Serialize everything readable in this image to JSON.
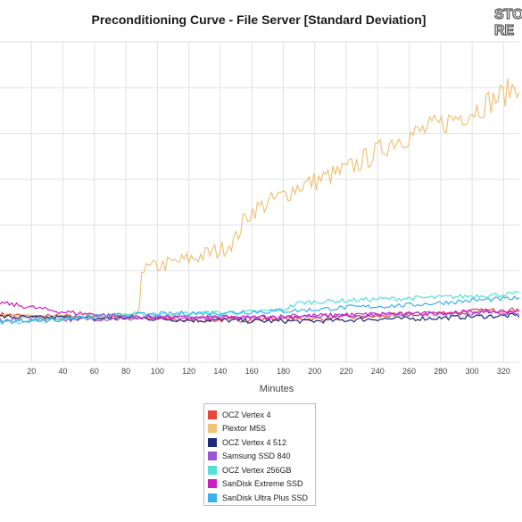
{
  "chart_data": {
    "type": "line",
    "title": "Preconditioning Curve - File Server [Standard Deviation]",
    "xlabel": "Minutes",
    "ylabel": "",
    "xlim": [
      0,
      330
    ],
    "x_ticks": [
      20,
      40,
      60,
      80,
      100,
      120,
      140,
      160,
      180,
      200,
      220,
      240,
      260,
      280,
      300,
      320
    ],
    "ylim": [
      0,
      7
    ],
    "grid": true,
    "legend_position": "bottom-center",
    "series": [
      {
        "name": "OCZ Vertex 4",
        "color": "#e8463a",
        "x": [
          0,
          20,
          40,
          60,
          80,
          100,
          120,
          140,
          160,
          180,
          200,
          220,
          240,
          260,
          280,
          300,
          330
        ],
        "y": [
          1.05,
          1.0,
          1.0,
          0.98,
          1.0,
          0.95,
          0.92,
          0.92,
          0.93,
          0.95,
          0.95,
          0.98,
          1.0,
          1.05,
          1.08,
          1.12,
          1.15
        ]
      },
      {
        "name": "Plextor M5S",
        "color": "#f0c27a",
        "x": [
          0,
          20,
          40,
          60,
          80,
          88,
          89,
          90,
          100,
          120,
          140,
          150,
          155,
          160,
          180,
          190,
          200,
          220,
          240,
          250,
          260,
          280,
          300,
          320,
          330
        ],
        "y": [
          1.02,
          1.0,
          1.0,
          1.02,
          1.0,
          1.02,
          1.4,
          2.0,
          2.1,
          2.25,
          2.45,
          2.7,
          3.1,
          3.3,
          3.65,
          3.85,
          3.95,
          4.2,
          4.6,
          4.85,
          4.95,
          5.2,
          5.5,
          5.85,
          6.1
        ]
      },
      {
        "name": "OCZ Vertex 4 512",
        "color": "#1e2a7a",
        "x": [
          0,
          20,
          40,
          60,
          80,
          100,
          120,
          140,
          160,
          180,
          200,
          220,
          240,
          260,
          280,
          300,
          330
        ],
        "y": [
          1.0,
          0.97,
          0.98,
          0.95,
          0.97,
          0.95,
          0.92,
          0.92,
          0.9,
          0.9,
          0.9,
          0.92,
          0.95,
          0.95,
          0.97,
          1.0,
          1.02
        ]
      },
      {
        "name": "Samsung SSD 840",
        "color": "#9b55d6",
        "x": [
          0,
          20,
          40,
          60,
          80,
          100,
          120,
          140,
          160,
          180,
          200,
          220,
          240,
          260,
          280,
          300,
          330
        ],
        "y": [
          0.92,
          0.92,
          0.93,
          0.95,
          0.95,
          0.97,
          0.97,
          0.98,
          1.0,
          1.0,
          1.02,
          1.03,
          1.05,
          1.05,
          1.07,
          1.08,
          1.1
        ]
      },
      {
        "name": "OCZ Vertex 256GB",
        "color": "#55e0d6",
        "x": [
          0,
          20,
          40,
          60,
          80,
          100,
          120,
          140,
          160,
          180,
          190,
          200,
          220,
          240,
          260,
          280,
          300,
          330
        ],
        "y": [
          0.85,
          0.9,
          0.95,
          1.0,
          1.05,
          1.05,
          1.07,
          1.08,
          1.1,
          1.15,
          1.3,
          1.32,
          1.35,
          1.38,
          1.4,
          1.42,
          1.45,
          1.5
        ]
      },
      {
        "name": "SanDisk Extreme SSD",
        "color": "#cc1fc1",
        "x": [
          0,
          20,
          40,
          60,
          80,
          100,
          120,
          140,
          160,
          180,
          200,
          220,
          240,
          260,
          280,
          300,
          330
        ],
        "y": [
          1.3,
          1.2,
          1.1,
          1.05,
          1.0,
          0.98,
          0.97,
          0.97,
          0.98,
          1.0,
          1.02,
          1.03,
          1.05,
          1.05,
          1.08,
          1.1,
          1.12
        ]
      },
      {
        "name": "SanDisk Ultra Plus SSD",
        "color": "#3ab0ec",
        "x": [
          0,
          20,
          40,
          60,
          80,
          100,
          120,
          140,
          160,
          180,
          200,
          220,
          240,
          260,
          280,
          300,
          330
        ],
        "y": [
          0.88,
          0.92,
          0.97,
          1.0,
          1.03,
          1.05,
          1.07,
          1.08,
          1.1,
          1.12,
          1.15,
          1.2,
          1.22,
          1.25,
          1.3,
          1.35,
          1.4
        ]
      }
    ]
  },
  "logo": {
    "line1": "STO",
    "line2": "RE"
  }
}
